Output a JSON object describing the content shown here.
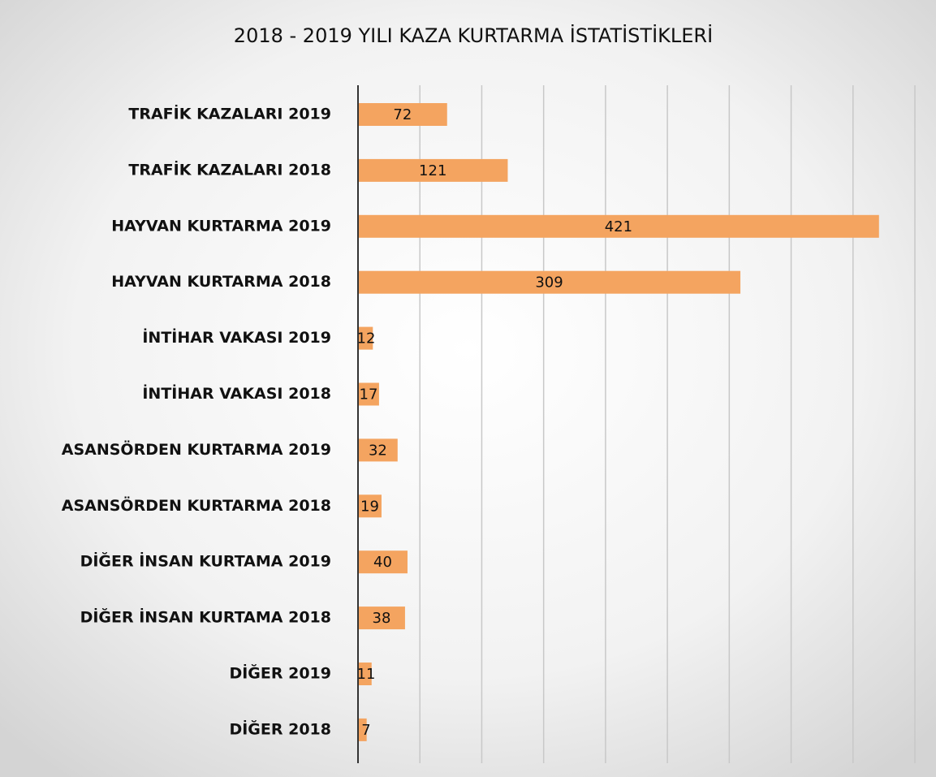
{
  "chart_data": {
    "type": "bar",
    "orientation": "horizontal",
    "title": "2018 - 2019 YILI KAZA KURTARMA İSTATİSTİKLERİ",
    "categories": [
      "TRAFİK KAZALARI 2019",
      "TRAFİK KAZALARI 2018",
      "HAYVAN KURTARMA 2019",
      "HAYVAN KURTARMA 2018",
      "İNTİHAR VAKASI 2019",
      "İNTİHAR VAKASI 2018",
      "ASANSÖRDEN KURTARMA 2019",
      "ASANSÖRDEN KURTARMA 2018",
      "DİĞER İNSAN KURTAMA 2019",
      "DİĞER İNSAN KURTAMA 2018",
      "DİĞER 2019",
      "DİĞER 2018"
    ],
    "values": [
      72,
      121,
      421,
      309,
      12,
      17,
      32,
      19,
      40,
      38,
      11,
      7
    ],
    "color": "#f4a460",
    "xlim": [
      0,
      450
    ],
    "xticks": [
      0,
      50,
      100,
      150,
      200,
      250,
      300,
      350,
      400,
      450
    ],
    "grid": true
  }
}
